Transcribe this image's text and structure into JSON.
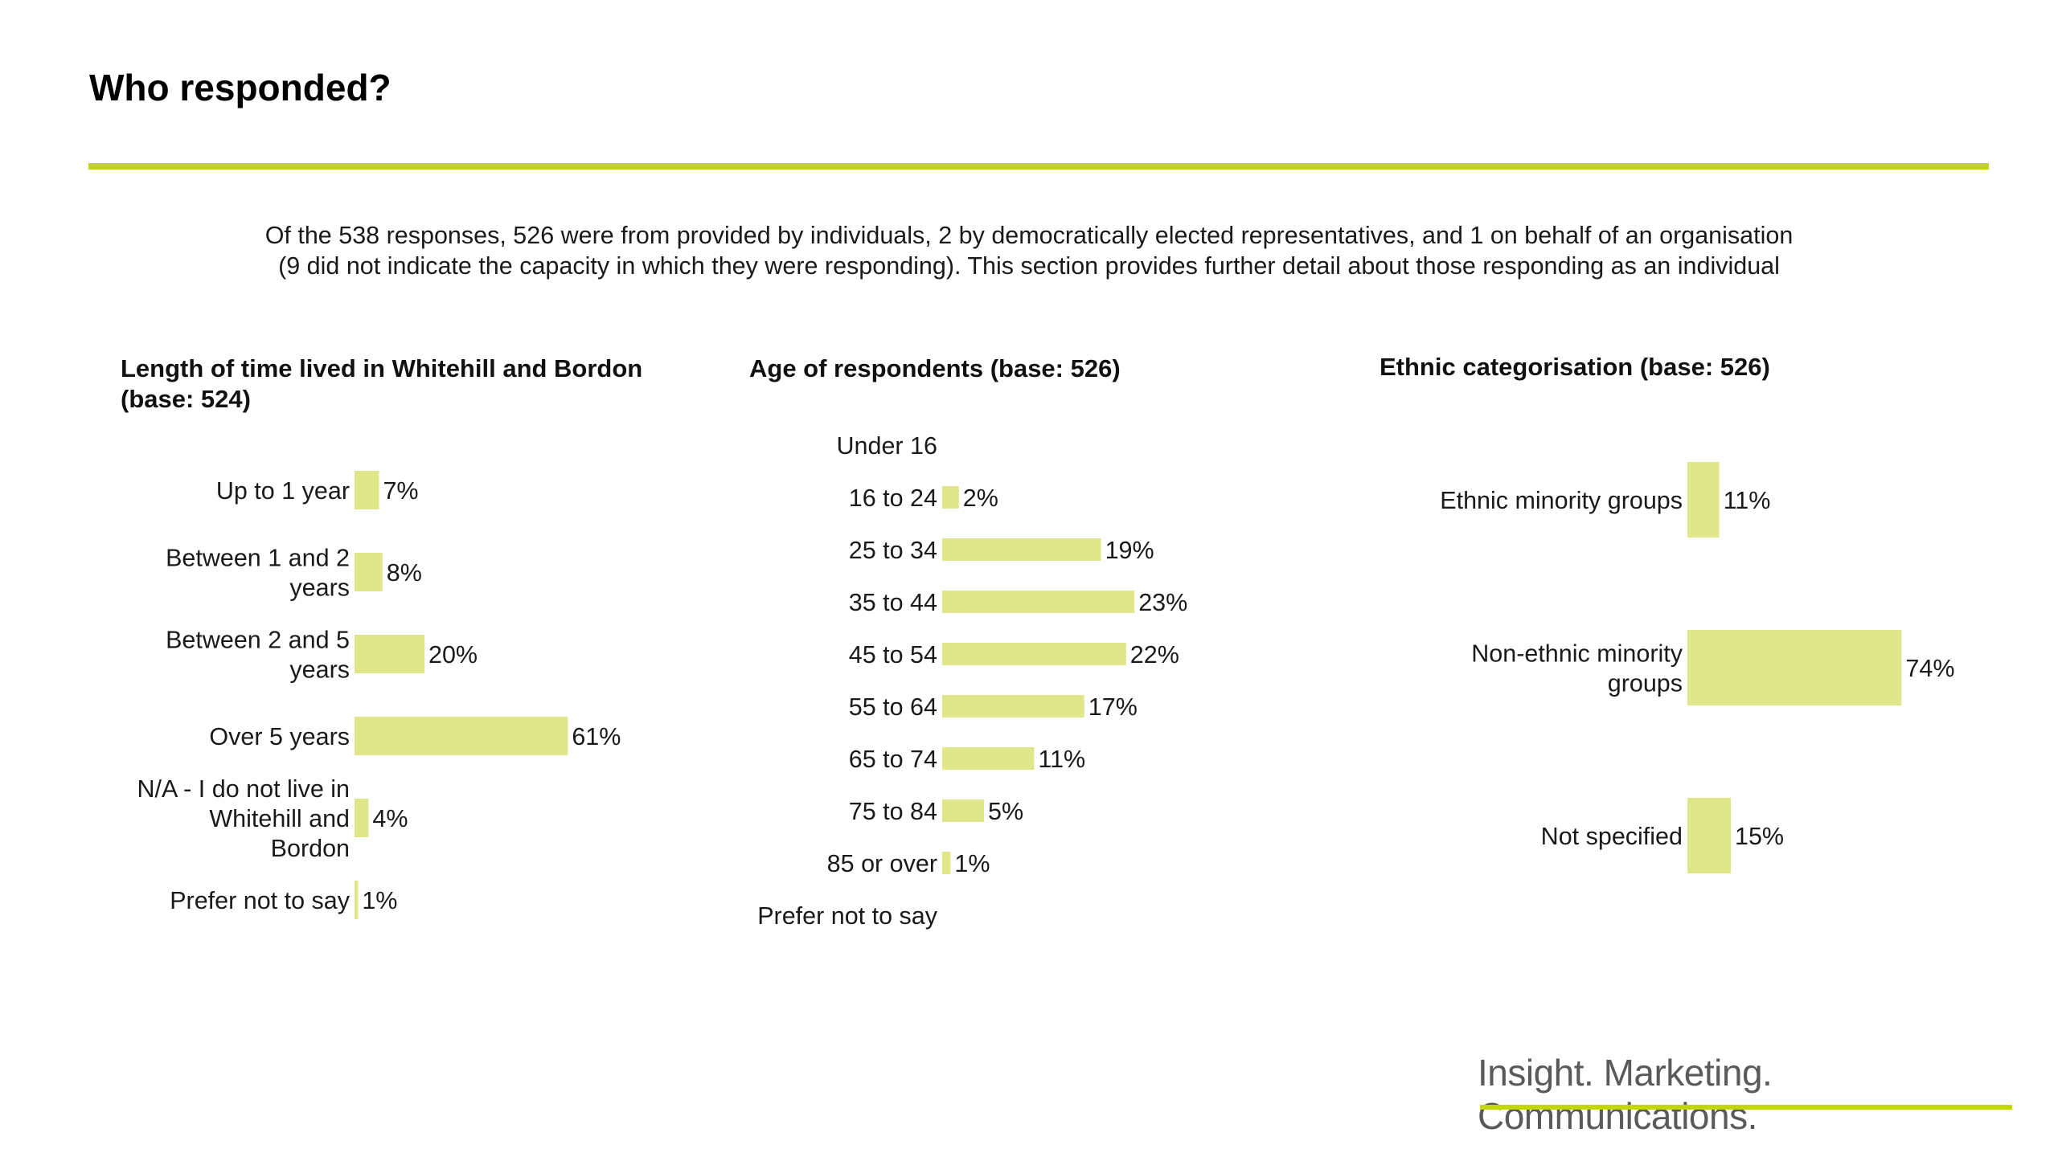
{
  "header": {
    "title": "Who responded?"
  },
  "intro": {
    "line1": "Of the 538 responses, 526 were from provided by individuals, 2 by democratically elected representatives, and 1 on behalf of an organisation",
    "line2": "(9 did not indicate the capacity in which they were responding). This section provides further detail about those responding as an individual"
  },
  "footer": {
    "tagline": "Insight. Marketing. Communications."
  },
  "colors": {
    "bar": "#e0e68a",
    "accent": "#c5d21a"
  },
  "chart_data": [
    {
      "type": "bar",
      "orientation": "horizontal",
      "title_line1": "Length of time lived in Whitehill and Bordon",
      "title_line2": "(base: 524)",
      "categories": [
        [
          "Up to 1 year"
        ],
        [
          "Between 1 and 2",
          "years"
        ],
        [
          "Between 2 and 5",
          "years"
        ],
        [
          "Over 5 years"
        ],
        [
          "N/A - I do not live in",
          "Whitehill and",
          "Bordon"
        ],
        [
          "Prefer not to say"
        ]
      ],
      "values": [
        7,
        8,
        20,
        61,
        4,
        1
      ],
      "labels": [
        "7%",
        "8%",
        "20%",
        "61%",
        "4%",
        "1%"
      ],
      "unit": "%"
    },
    {
      "type": "bar",
      "orientation": "horizontal",
      "title_line1": "Age of respondents (base: 526)",
      "categories": [
        [
          "Under 16"
        ],
        [
          "16 to 24"
        ],
        [
          "25 to 34"
        ],
        [
          "35 to 44"
        ],
        [
          "45 to 54"
        ],
        [
          "55 to 64"
        ],
        [
          "65 to 74"
        ],
        [
          "75 to 84"
        ],
        [
          "85 or over"
        ],
        [
          "Prefer not to say"
        ]
      ],
      "values": [
        null,
        2,
        19,
        23,
        22,
        17,
        11,
        5,
        1,
        null
      ],
      "labels": [
        "",
        "2%",
        "19%",
        "23%",
        "22%",
        "17%",
        "11%",
        "5%",
        "1%",
        ""
      ],
      "unit": "%"
    },
    {
      "type": "bar",
      "orientation": "horizontal",
      "title_line1": "Ethnic categorisation (base: 526)",
      "categories": [
        [
          "Ethnic minority groups"
        ],
        [
          "Non-ethnic minority",
          "groups"
        ],
        [
          "Not specified"
        ]
      ],
      "values": [
        11,
        74,
        15
      ],
      "labels": [
        "11%",
        "74%",
        "15%"
      ],
      "unit": "%"
    }
  ]
}
